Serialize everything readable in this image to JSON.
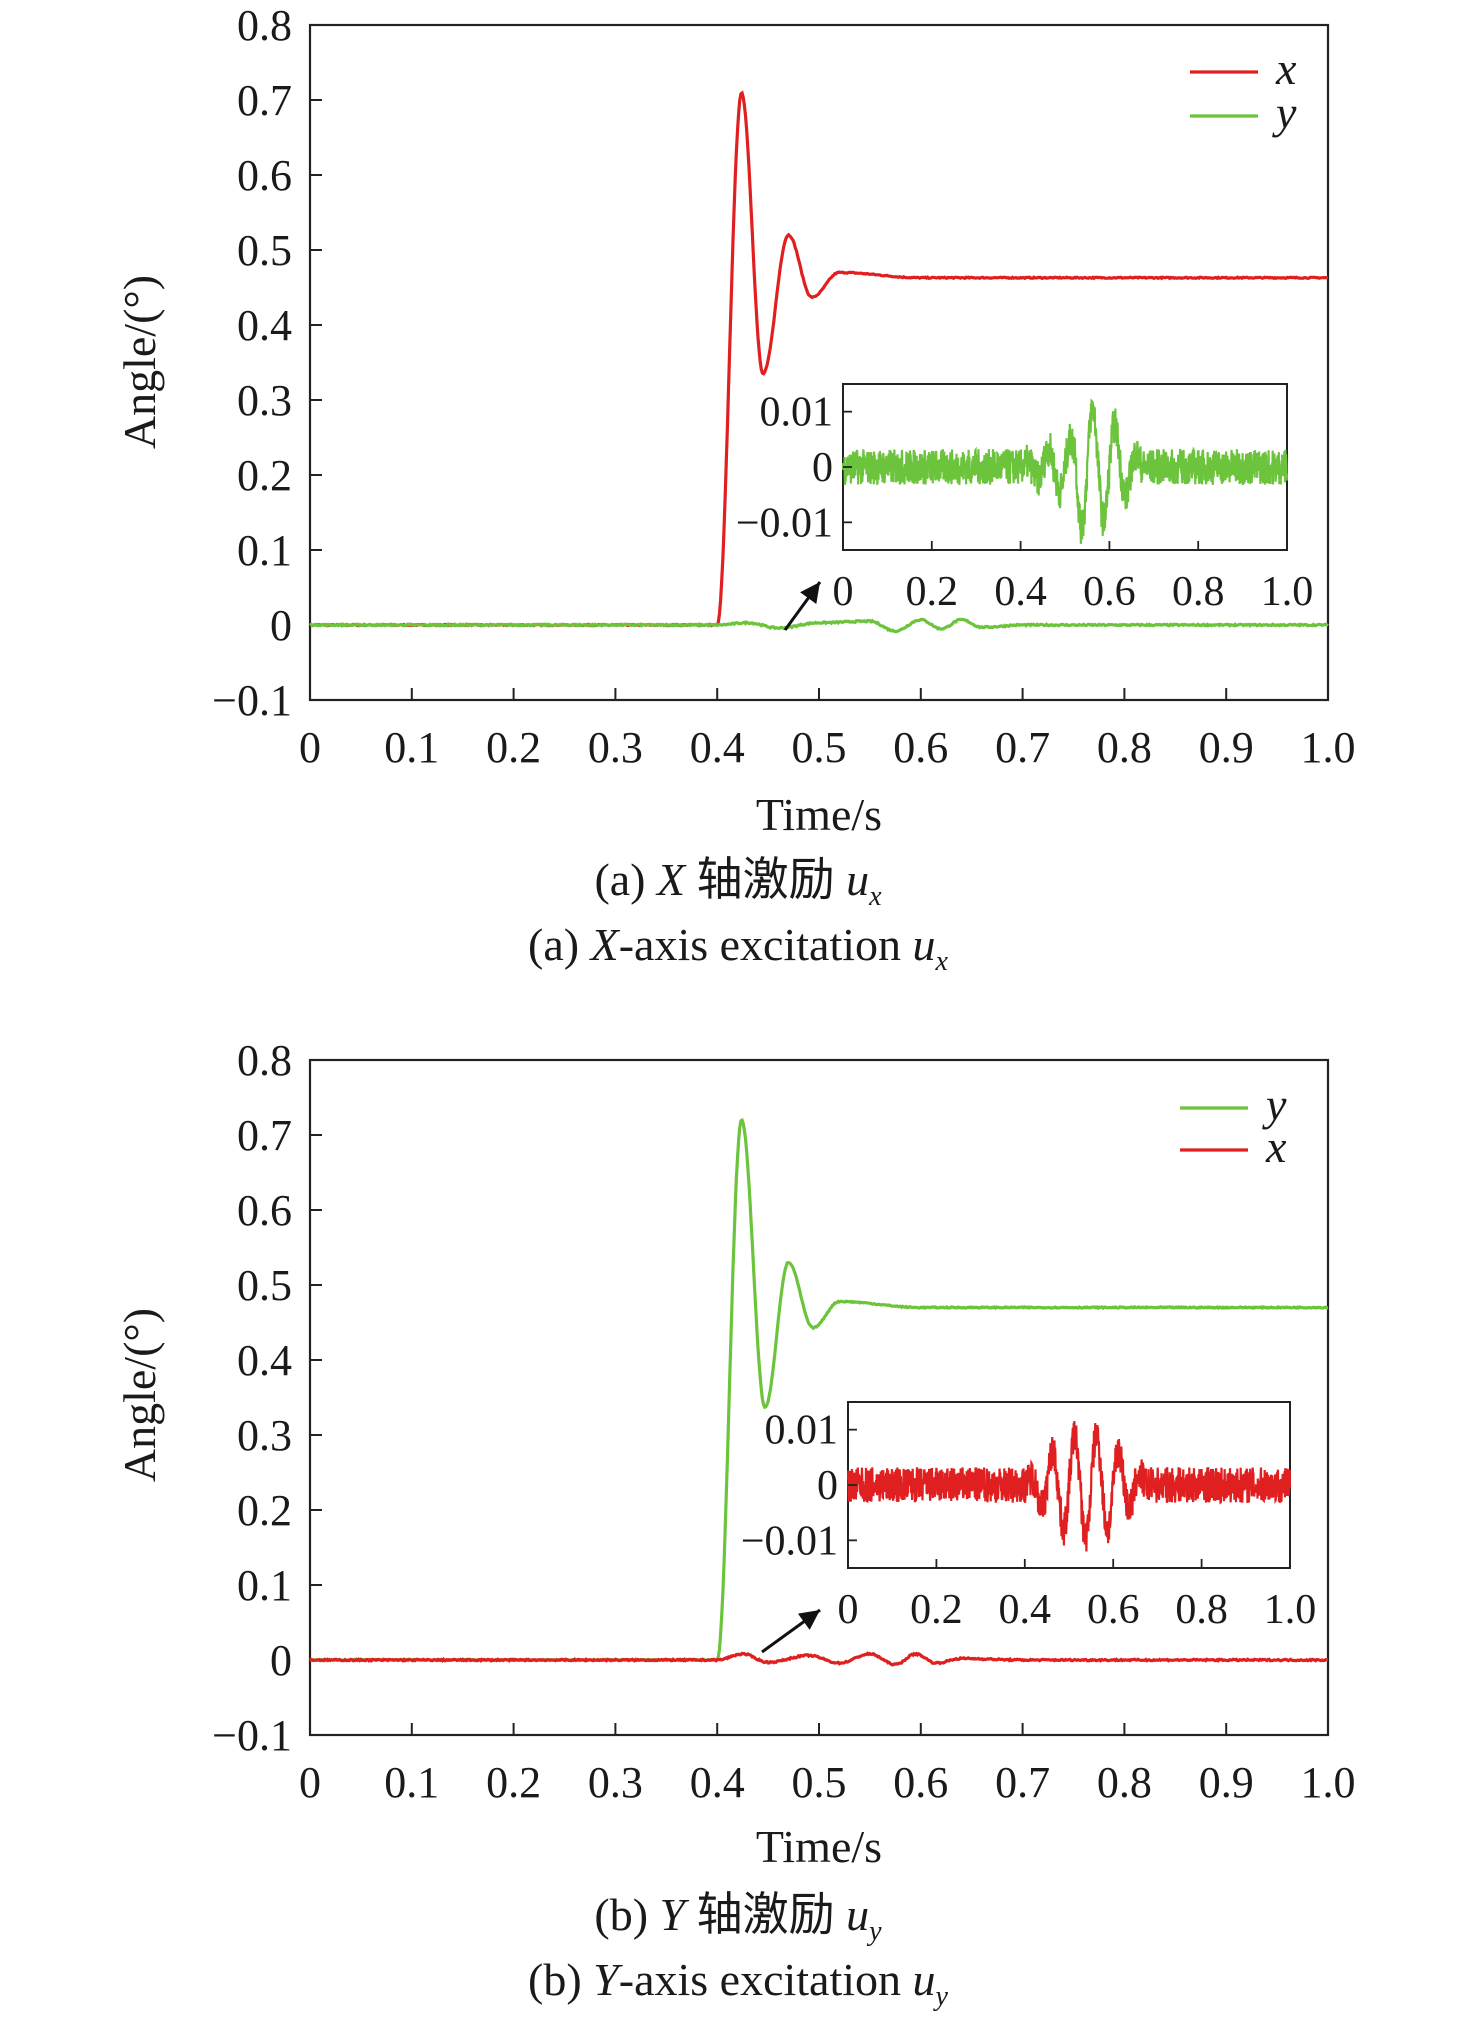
{
  "chart_data": [
    {
      "type": "line",
      "id": "a",
      "xlabel": "Time/s",
      "ylabel": "Angle/(°)",
      "xlim": [
        0,
        1.0
      ],
      "ylim": [
        -0.1,
        0.8
      ],
      "x_ticks": [
        "0",
        "0.1",
        "0.2",
        "0.3",
        "0.4",
        "0.5",
        "0.6",
        "0.7",
        "0.8",
        "0.9",
        "1.0"
      ],
      "y_ticks": [
        "−0.1",
        "0",
        "0.1",
        "0.2",
        "0.3",
        "0.4",
        "0.5",
        "0.6",
        "0.7",
        "0.8"
      ],
      "grid": false,
      "legend_position": "top-right",
      "series": [
        {
          "name": "x",
          "color": "#e02020",
          "step_time": 0.4,
          "steady_value": 0.463,
          "points": [
            [
              0,
              0
            ],
            [
              0.4,
              0
            ],
            [
              0.424,
              0.709
            ],
            [
              0.445,
              0.335
            ],
            [
              0.47,
              0.52
            ],
            [
              0.493,
              0.437
            ],
            [
              0.52,
              0.47
            ],
            [
              0.6,
              0.463
            ],
            [
              1.0,
              0.463
            ]
          ]
        },
        {
          "name": "y",
          "color": "#6cc43c",
          "points": [
            [
              0,
              0
            ],
            [
              0.4,
              0
            ],
            [
              0.43,
              0.003
            ],
            [
              0.46,
              -0.004
            ],
            [
              0.5,
              0.003
            ],
            [
              0.55,
              0.005
            ],
            [
              0.575,
              -0.008
            ],
            [
              0.6,
              0.007
            ],
            [
              0.62,
              -0.005
            ],
            [
              0.64,
              0.007
            ],
            [
              0.66,
              -0.003
            ],
            [
              0.7,
              0
            ],
            [
              1.0,
              0
            ]
          ]
        }
      ],
      "inset": {
        "series": "y",
        "x_ticks": [
          "0",
          "0.2",
          "0.4",
          "0.6",
          "0.8",
          "1.0"
        ],
        "y_ticks": [
          "0.01",
          "0",
          "−0.01"
        ],
        "xlim": [
          0,
          1.0
        ],
        "ylim": [
          -0.015,
          0.015
        ]
      },
      "caption_cn": {
        "prefix": "(a) ",
        "axis": "X",
        "text": " 轴激励 ",
        "var": "u",
        "sub": "x"
      },
      "caption_en": {
        "prefix": "(a) ",
        "axis": "X",
        "text": "-axis excitation ",
        "var": "u",
        "sub": "x"
      }
    },
    {
      "type": "line",
      "id": "b",
      "xlabel": "Time/s",
      "ylabel": "Angle/(°)",
      "xlim": [
        0,
        1.0
      ],
      "ylim": [
        -0.1,
        0.8
      ],
      "x_ticks": [
        "0",
        "0.1",
        "0.2",
        "0.3",
        "0.4",
        "0.5",
        "0.6",
        "0.7",
        "0.8",
        "0.9",
        "1.0"
      ],
      "y_ticks": [
        "−0.1",
        "0",
        "0.1",
        "0.2",
        "0.3",
        "0.4",
        "0.5",
        "0.6",
        "0.7",
        "0.8"
      ],
      "grid": false,
      "legend_position": "top-right",
      "series": [
        {
          "name": "y",
          "color": "#6cc43c",
          "step_time": 0.4,
          "steady_value": 0.47,
          "points": [
            [
              0,
              0
            ],
            [
              0.4,
              0
            ],
            [
              0.424,
              0.72
            ],
            [
              0.447,
              0.337
            ],
            [
              0.47,
              0.53
            ],
            [
              0.494,
              0.443
            ],
            [
              0.52,
              0.478
            ],
            [
              0.6,
              0.47
            ],
            [
              1.0,
              0.47
            ]
          ]
        },
        {
          "name": "x",
          "color": "#e02020",
          "points": [
            [
              0,
              0
            ],
            [
              0.4,
              0
            ],
            [
              0.425,
              0.008
            ],
            [
              0.45,
              -0.003
            ],
            [
              0.49,
              0.006
            ],
            [
              0.52,
              -0.004
            ],
            [
              0.55,
              0.008
            ],
            [
              0.575,
              -0.006
            ],
            [
              0.595,
              0.008
            ],
            [
              0.615,
              -0.004
            ],
            [
              0.64,
              0.002
            ],
            [
              0.7,
              0
            ],
            [
              1.0,
              0
            ]
          ]
        }
      ],
      "inset": {
        "series": "x",
        "x_ticks": [
          "0",
          "0.2",
          "0.4",
          "0.6",
          "0.8",
          "1.0"
        ],
        "y_ticks": [
          "0.01",
          "0",
          "−0.01"
        ],
        "xlim": [
          0,
          1.0
        ],
        "ylim": [
          -0.015,
          0.015
        ]
      },
      "caption_cn": {
        "prefix": "(b) ",
        "axis": "Y",
        "text": " 轴激励 ",
        "var": "u",
        "sub": "y"
      },
      "caption_en": {
        "prefix": "(b) ",
        "axis": "Y",
        "text": "-axis excitation ",
        "var": "u",
        "sub": "y"
      }
    }
  ]
}
